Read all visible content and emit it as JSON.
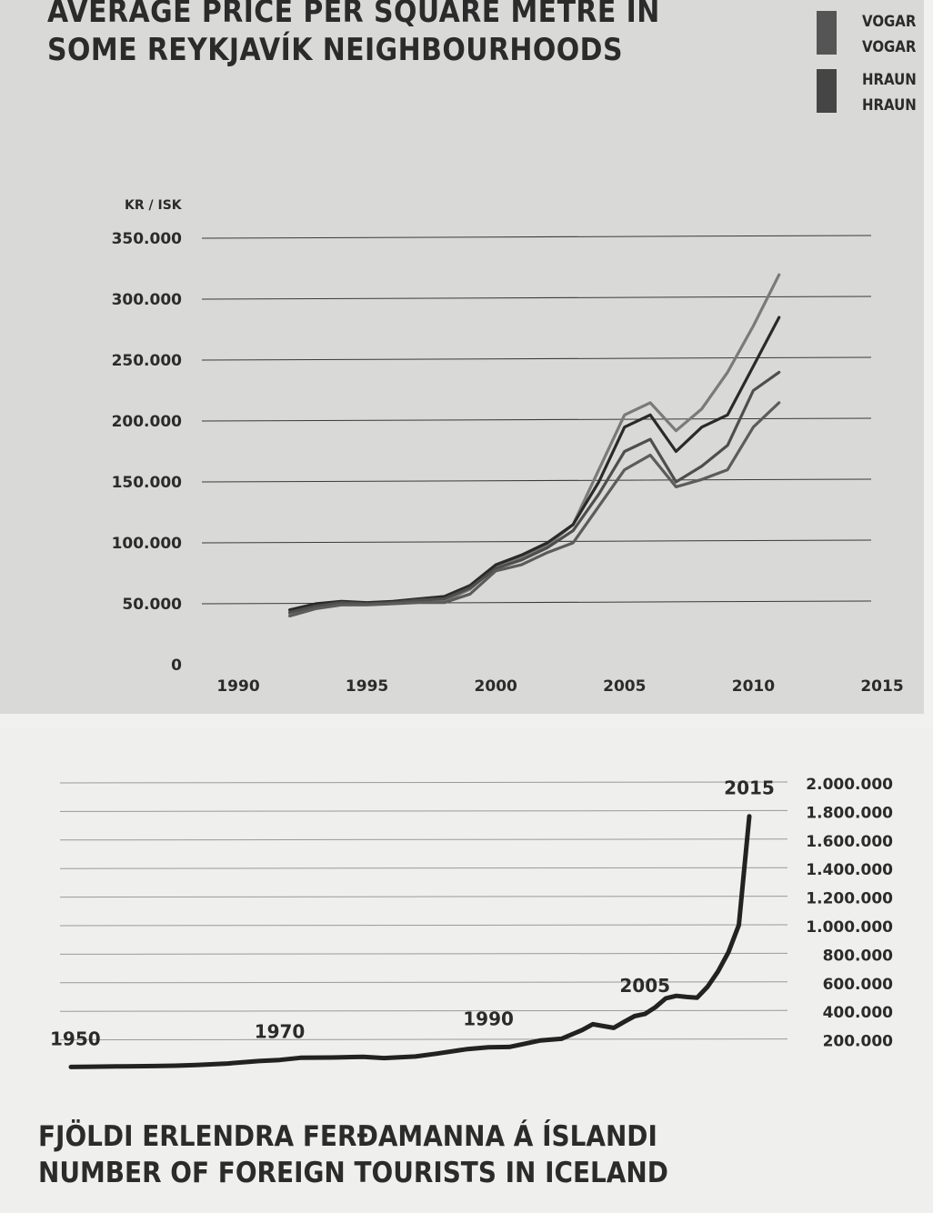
{
  "chart_data": [
    {
      "type": "line",
      "title": "AVERAGE PRICE PER SQUARE METRE IN SOME REYKJAVÍK NEIGHBOURHOODS",
      "title_lines": [
        "AVERAGE PRICE PER SQUARE METRE IN",
        "SOME REYKJAVÍK NEIGHBOURHOODS"
      ],
      "ylabel": "KR / ISK",
      "xlabel": "",
      "xlim": [
        1990,
        2015
      ],
      "ylim": [
        0,
        350000
      ],
      "x_ticks": [
        1990,
        1995,
        2000,
        2005,
        2010,
        2015
      ],
      "x_tick_labels": [
        "1990",
        "1995",
        "2000",
        "2005",
        "2010",
        "2015"
      ],
      "y_ticks": [
        0,
        50000,
        100000,
        150000,
        200000,
        250000,
        300000,
        350000
      ],
      "y_tick_labels": [
        "0",
        "50.000",
        "100.000",
        "150.000",
        "200.000",
        "250.000",
        "300.000",
        "350.000"
      ],
      "grid": true,
      "legend_placement": "top-right",
      "legend": [
        {
          "label": "VOGAR",
          "color": "#555555"
        },
        {
          "label": "VOGAR",
          "color": "#555555"
        },
        {
          "label": "HRAUN",
          "color": "#454545"
        },
        {
          "label": "HRAUN",
          "color": "#454545"
        }
      ],
      "series": [
        {
          "color": "#7a7a7a",
          "x": [
            1992,
            1993,
            1994,
            1995,
            1996,
            1997,
            1998,
            1999,
            2000,
            2001,
            2002,
            2003,
            2004,
            2005,
            2006,
            2007,
            2008,
            2009,
            2010,
            2011
          ],
          "values": [
            42000,
            47000,
            50000,
            50000,
            51000,
            52000,
            52000,
            62000,
            80000,
            88000,
            98000,
            115000,
            160000,
            205000,
            215000,
            192000,
            210000,
            240000,
            278000,
            320000
          ]
        },
        {
          "color": "#2a2a2a",
          "x": [
            1992,
            1993,
            1994,
            1995,
            1996,
            1997,
            1998,
            1999,
            2000,
            2001,
            2002,
            2003,
            2004,
            2005,
            2006,
            2007,
            2008,
            2009,
            2010,
            2011
          ],
          "values": [
            45000,
            50000,
            52000,
            51000,
            52000,
            54000,
            56000,
            65000,
            82000,
            90000,
            100000,
            115000,
            150000,
            195000,
            205000,
            175000,
            195000,
            205000,
            245000,
            285000
          ]
        },
        {
          "color": "#4e4e4e",
          "x": [
            1992,
            1993,
            1994,
            1995,
            1996,
            1997,
            1998,
            1999,
            2000,
            2001,
            2002,
            2003,
            2004,
            2005,
            2006,
            2007,
            2008,
            2009,
            2010,
            2011
          ],
          "values": [
            43000,
            48000,
            51000,
            50000,
            51000,
            53000,
            54000,
            63000,
            79000,
            86000,
            96000,
            110000,
            140000,
            175000,
            185000,
            150000,
            163000,
            180000,
            225000,
            240000
          ]
        },
        {
          "color": "#5c5c5c",
          "x": [
            1992,
            1993,
            1994,
            1995,
            1996,
            1997,
            1998,
            1999,
            2000,
            2001,
            2002,
            2003,
            2004,
            2005,
            2006,
            2007,
            2008,
            2009,
            2010,
            2011
          ],
          "values": [
            40000,
            46000,
            49000,
            49000,
            50000,
            51000,
            51000,
            58000,
            77000,
            82000,
            92000,
            100000,
            130000,
            160000,
            172000,
            146000,
            152000,
            160000,
            195000,
            215000
          ]
        }
      ]
    },
    {
      "type": "line",
      "title": "FJÖLDI ERLENDRA FERÐAMANNA Á ÍSLANDI / NUMBER OF FOREIGN TOURISTS IN ICELAND",
      "title_lines": [
        "FJÖLDI ERLENDRA FERÐAMANNA Á ÍSLANDI",
        "NUMBER OF FOREIGN TOURISTS IN ICELAND"
      ],
      "xlabel": "",
      "ylabel": "",
      "xlim": [
        1950,
        2015
      ],
      "ylim": [
        0,
        2000000
      ],
      "y_ticks": [
        200000,
        400000,
        600000,
        800000,
        1000000,
        1200000,
        1400000,
        1600000,
        1800000,
        2000000
      ],
      "y_tick_labels": [
        "200.000",
        "400.000",
        "600.000",
        "800.000",
        "1.000.000",
        "1.200.000",
        "1.400.000",
        "1.600.000",
        "1.800.000",
        "2.000.000"
      ],
      "y_axis_side": "right",
      "grid": true,
      "annotations": [
        {
          "x": 1950,
          "label": "1950"
        },
        {
          "x": 1970,
          "label": "1970"
        },
        {
          "x": 1990,
          "label": "1990"
        },
        {
          "x": 2005,
          "label": "2005"
        },
        {
          "x": 2015,
          "label": "2015"
        }
      ],
      "series": [
        {
          "color": "#222222",
          "x": [
            1950,
            1952,
            1955,
            1958,
            1960,
            1962,
            1965,
            1968,
            1970,
            1972,
            1975,
            1978,
            1980,
            1983,
            1985,
            1988,
            1990,
            1992,
            1995,
            1997,
            1999,
            2000,
            2002,
            2003,
            2004,
            2005,
            2006,
            2007,
            2008,
            2009,
            2010,
            2011,
            2012,
            2013,
            2014,
            2015
          ],
          "values": [
            4000,
            6000,
            8000,
            10000,
            13000,
            18000,
            28000,
            45000,
            53000,
            68000,
            70000,
            75000,
            66000,
            77000,
            97000,
            129000,
            142000,
            144000,
            190000,
            201000,
            263000,
            303000,
            278000,
            320000,
            360000,
            375000,
            422000,
            485000,
            502000,
            494000,
            489000,
            566000,
            673000,
            807000,
            998000,
            1760000
          ]
        }
      ]
    }
  ]
}
